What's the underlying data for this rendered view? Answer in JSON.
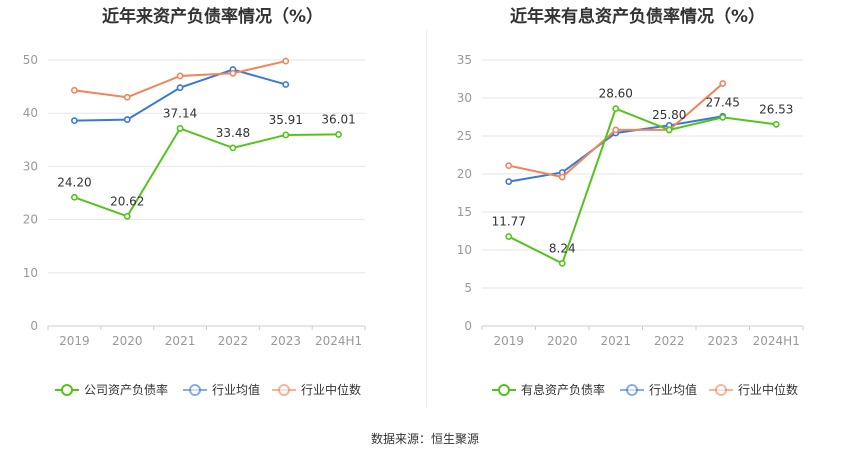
{
  "source": "数据来源：恒生聚源",
  "chart_data": [
    {
      "type": "line",
      "title": "近年来资产负债率情况（%）",
      "categories": [
        "2019",
        "2020",
        "2021",
        "2022",
        "2023",
        "2024H1"
      ],
      "ylim": [
        0,
        50
      ],
      "yticks": [
        "0",
        "10",
        "20",
        "30",
        "40",
        "50"
      ],
      "grid": true,
      "legend_position": "bottom",
      "series": [
        {
          "name": "公司资产负债率",
          "color": "#52c41a",
          "values": [
            24.2,
            20.62,
            37.14,
            33.48,
            35.91,
            36.01
          ],
          "labels": [
            "24.20",
            "20.62",
            "37.14",
            "33.48",
            "35.91",
            "36.01"
          ]
        },
        {
          "name": "行业均值",
          "color": "#3a78d8",
          "values": [
            38.6,
            38.8,
            44.8,
            48.2,
            45.4,
            null
          ]
        },
        {
          "name": "行业中位数",
          "color": "#f0855a",
          "values": [
            44.3,
            43.0,
            47.0,
            47.5,
            49.8,
            null
          ]
        }
      ]
    },
    {
      "type": "line",
      "title": "近年来有息资产负债率情况（%）",
      "categories": [
        "2019",
        "2020",
        "2021",
        "2022",
        "2023",
        "2024H1"
      ],
      "ylim": [
        0,
        35
      ],
      "yticks": [
        "0",
        "5",
        "10",
        "15",
        "20",
        "25",
        "30",
        "35"
      ],
      "grid": true,
      "legend_position": "bottom",
      "series": [
        {
          "name": "有息资产负债率",
          "color": "#52c41a",
          "values": [
            11.77,
            8.24,
            28.6,
            25.8,
            27.45,
            26.53
          ],
          "labels": [
            "11.77",
            "8.24",
            "28.60",
            "25.80",
            "27.45",
            "26.53"
          ]
        },
        {
          "name": "行业均值",
          "color": "#3a78d8",
          "values": [
            19.0,
            20.2,
            25.4,
            26.4,
            27.6,
            null
          ]
        },
        {
          "name": "行业中位数",
          "color": "#f0855a",
          "values": [
            21.1,
            19.6,
            25.8,
            25.8,
            31.9,
            null
          ]
        }
      ]
    }
  ]
}
